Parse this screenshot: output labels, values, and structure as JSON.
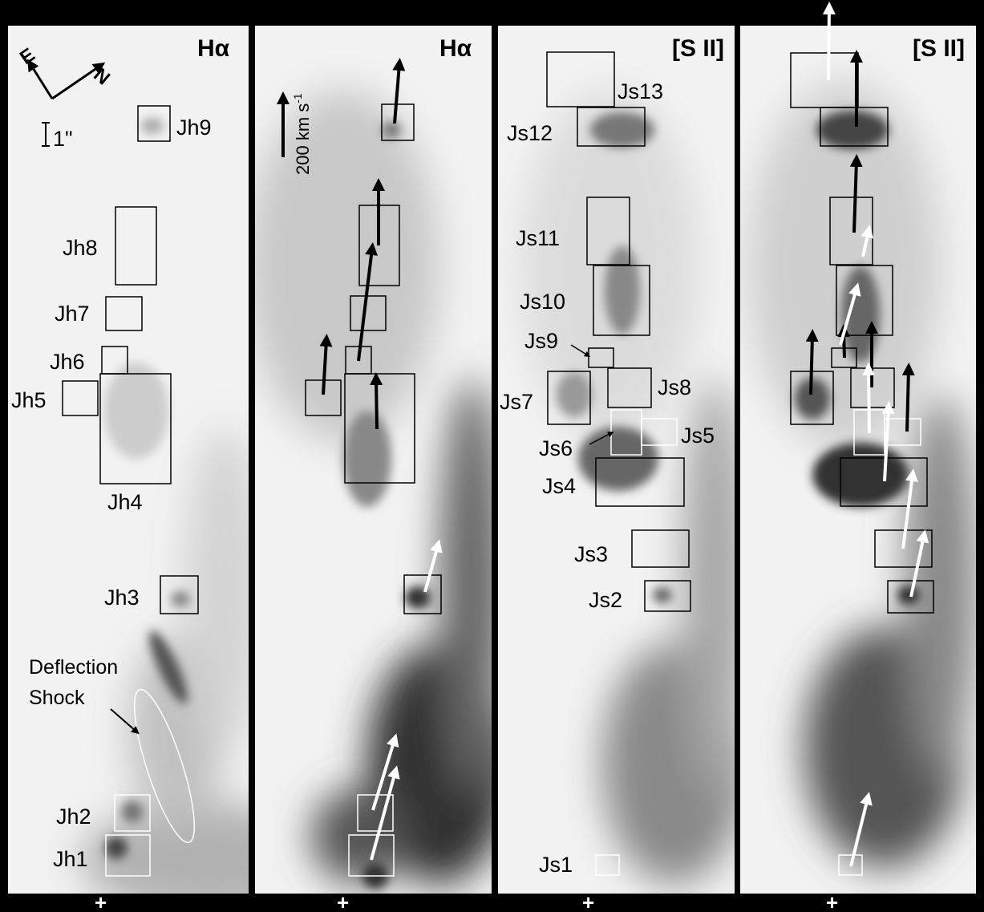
{
  "panels": [
    {
      "title": "Hα"
    },
    {
      "title": "Hα"
    },
    {
      "title": "[S II]"
    },
    {
      "title": "[S II]"
    }
  ],
  "compass": {
    "east": "E",
    "north": "N"
  },
  "scale_bar_label": "1\"",
  "velocity_scale_label": "200 km s",
  "velocity_scale_sup": "-1",
  "deflection_label_line1": "Deflection",
  "deflection_label_line2": "Shock",
  "origin_marker": "+",
  "halpha_knots": [
    "Jh1",
    "Jh2",
    "Jh3",
    "Jh4",
    "Jh5",
    "Jh6",
    "Jh7",
    "Jh8",
    "Jh9"
  ],
  "sii_knots": [
    "Js1",
    "Js2",
    "Js3",
    "Js4",
    "Js5",
    "Js6",
    "Js7",
    "Js8",
    "Js9",
    "Js10",
    "Js11",
    "Js12",
    "Js13"
  ]
}
